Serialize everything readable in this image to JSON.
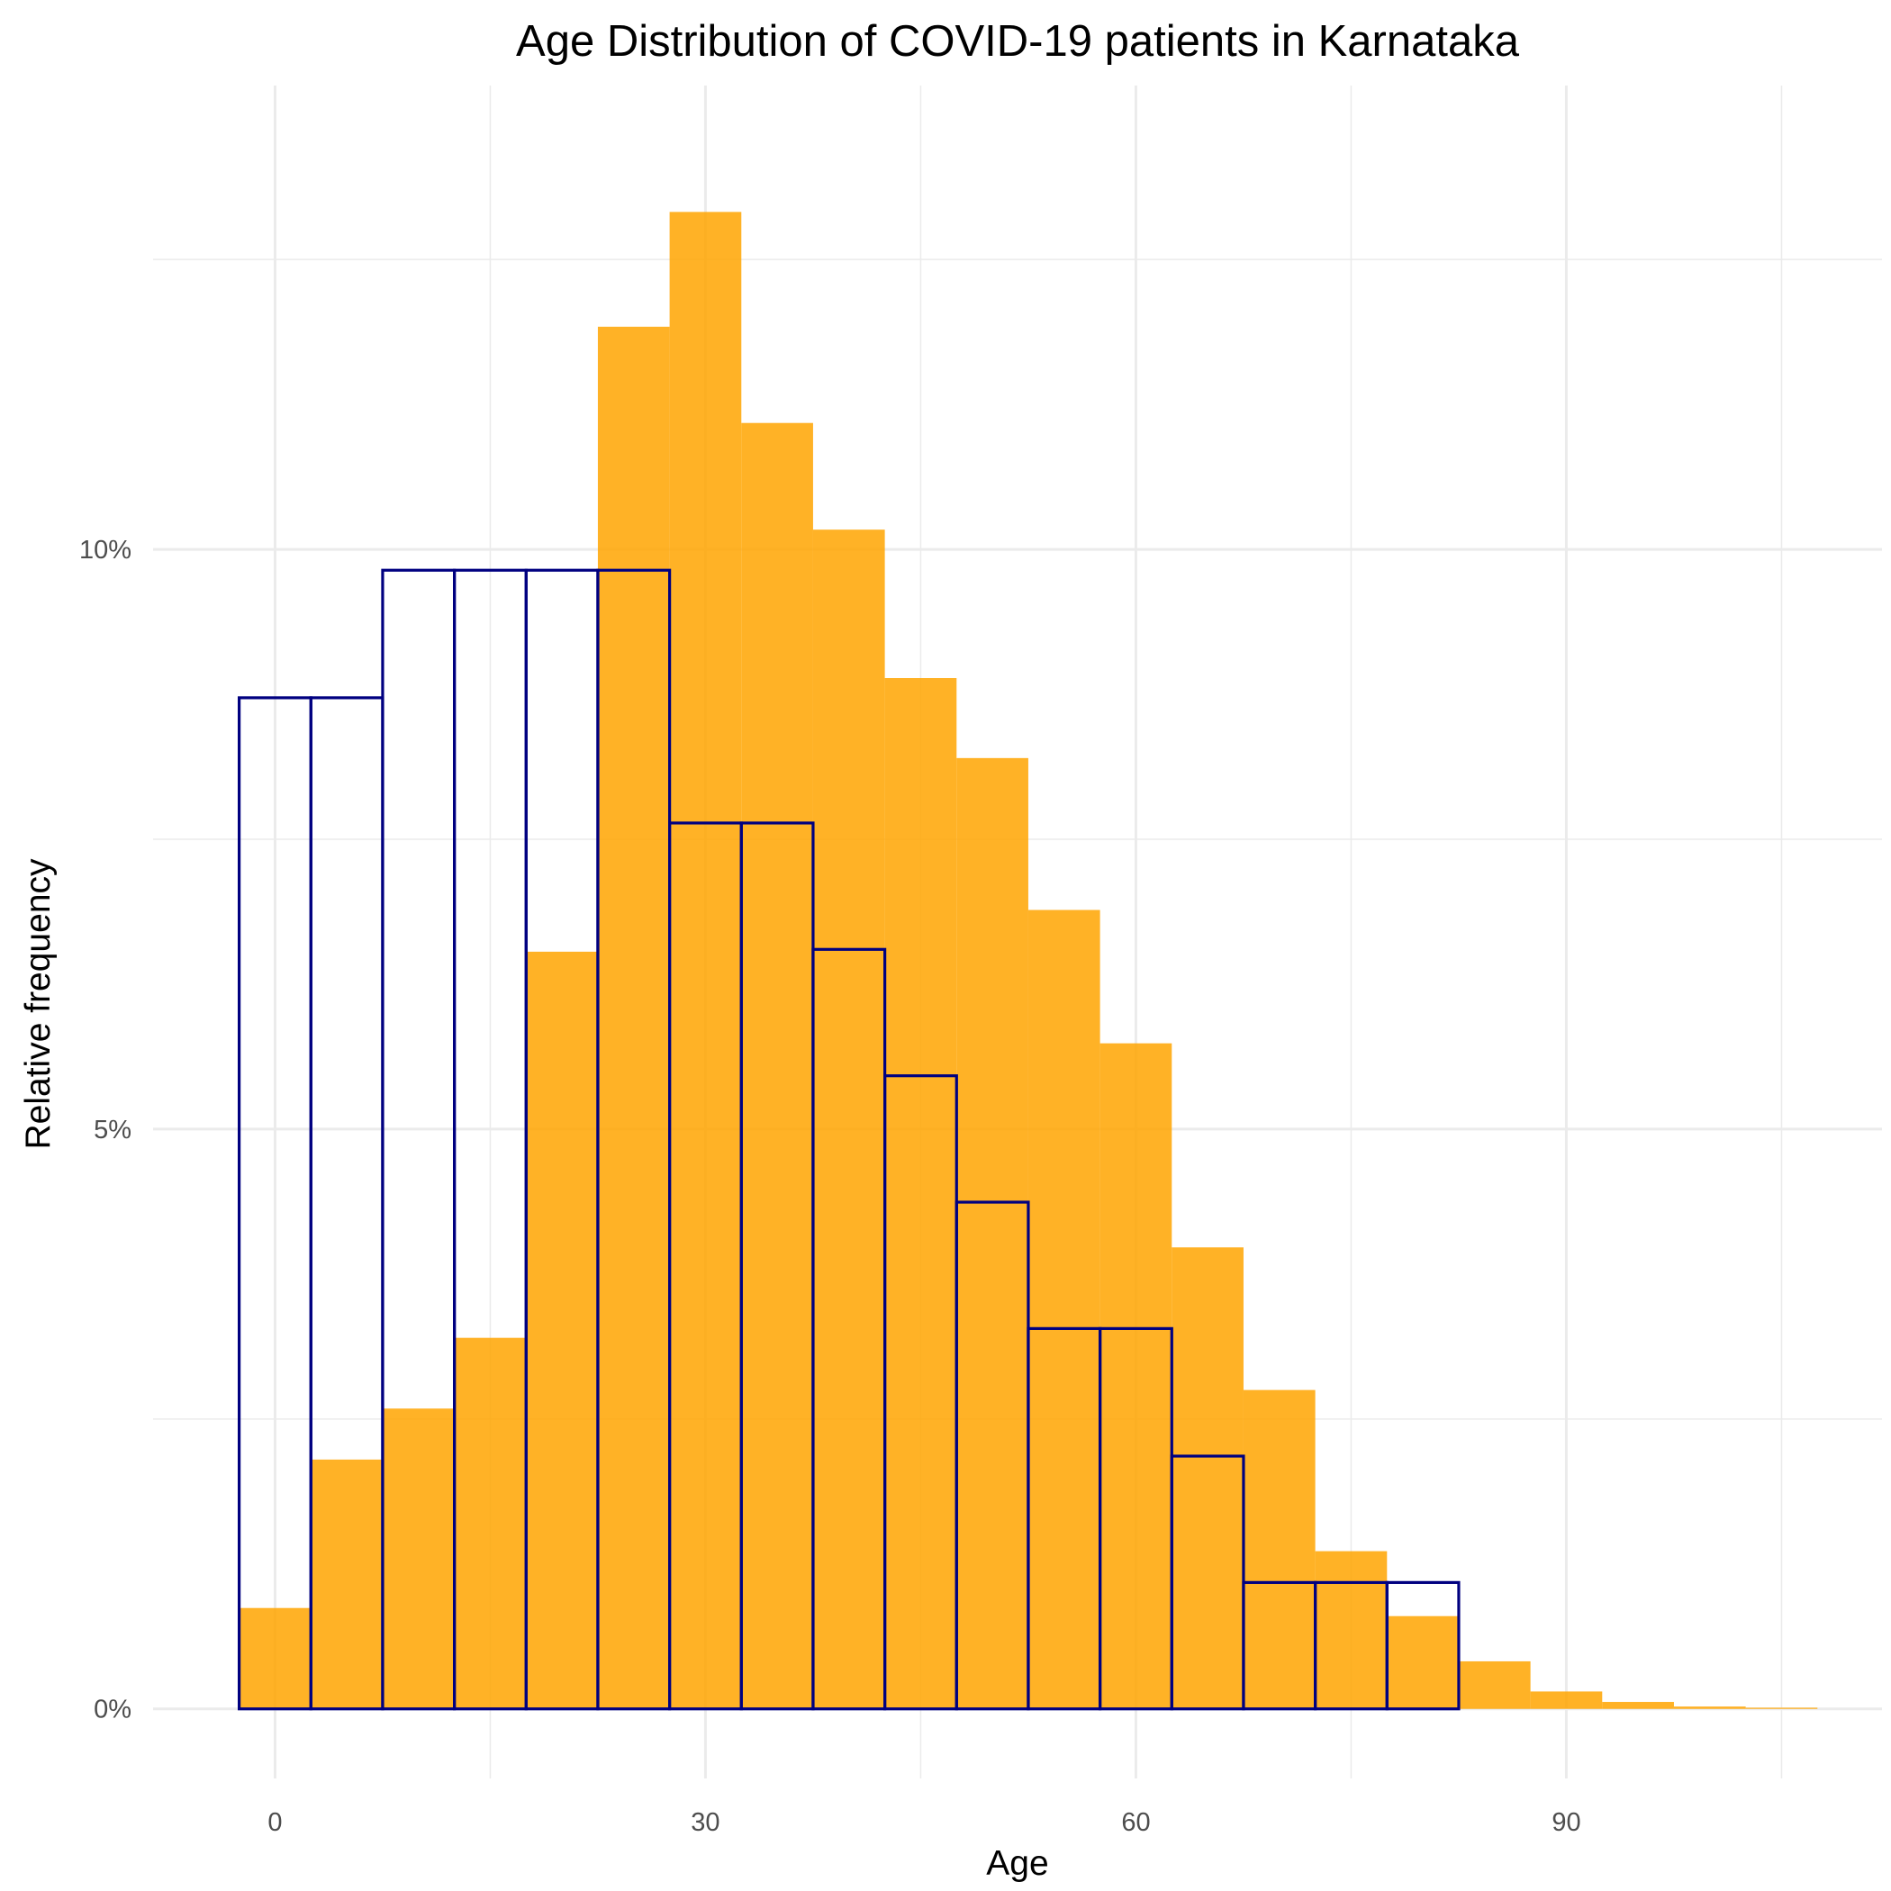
{
  "chart_data": {
    "type": "bar",
    "title": "Age Distribution of COVID-19 patients in Karnataka",
    "xlabel": "Age",
    "ylabel": "Relative frequency",
    "xlim": [
      -8.5,
      112
    ],
    "ylim": [
      -0.6,
      14.0
    ],
    "x_ticks": [
      0,
      30,
      60,
      90
    ],
    "x_tick_labels": [
      "0",
      "30",
      "60",
      "90"
    ],
    "x_minor_ticks": [
      15,
      45,
      75,
      105
    ],
    "y_ticks": [
      0,
      5,
      10
    ],
    "y_tick_labels": [
      "0%",
      "5%",
      "10%"
    ],
    "y_minor_ticks": [
      2.5,
      7.5,
      12.5
    ],
    "bin_width": 5,
    "grid": true,
    "legend": "none",
    "series": [
      {
        "style": "filled",
        "color": "#ffa500",
        "opacity": 0.85,
        "bins": [
          {
            "x": 0,
            "value": 0.87
          },
          {
            "x": 5,
            "value": 2.15
          },
          {
            "x": 10,
            "value": 2.59
          },
          {
            "x": 15,
            "value": 3.2
          },
          {
            "x": 20,
            "value": 6.53
          },
          {
            "x": 25,
            "value": 11.92
          },
          {
            "x": 30,
            "value": 12.91
          },
          {
            "x": 35,
            "value": 11.09
          },
          {
            "x": 40,
            "value": 10.17
          },
          {
            "x": 45,
            "value": 8.89
          },
          {
            "x": 50,
            "value": 8.2
          },
          {
            "x": 55,
            "value": 6.89
          },
          {
            "x": 60,
            "value": 5.74
          },
          {
            "x": 65,
            "value": 3.98
          },
          {
            "x": 70,
            "value": 2.75
          },
          {
            "x": 75,
            "value": 1.36
          },
          {
            "x": 80,
            "value": 0.8
          },
          {
            "x": 85,
            "value": 0.41
          },
          {
            "x": 90,
            "value": 0.15
          },
          {
            "x": 95,
            "value": 0.06
          },
          {
            "x": 100,
            "value": 0.02
          },
          {
            "x": 105,
            "value": 0.01
          }
        ]
      },
      {
        "style": "outline",
        "color": "#000080",
        "bins": [
          {
            "x": 0,
            "value": 8.72
          },
          {
            "x": 5,
            "value": 8.72
          },
          {
            "x": 10,
            "value": 9.82
          },
          {
            "x": 15,
            "value": 9.82
          },
          {
            "x": 20,
            "value": 9.82
          },
          {
            "x": 25,
            "value": 9.82
          },
          {
            "x": 30,
            "value": 7.64
          },
          {
            "x": 35,
            "value": 7.64
          },
          {
            "x": 40,
            "value": 6.55
          },
          {
            "x": 45,
            "value": 5.46
          },
          {
            "x": 50,
            "value": 4.37
          },
          {
            "x": 55,
            "value": 3.28
          },
          {
            "x": 60,
            "value": 3.28
          },
          {
            "x": 65,
            "value": 2.18
          },
          {
            "x": 70,
            "value": 1.09
          },
          {
            "x": 75,
            "value": 1.09
          },
          {
            "x": 80,
            "value": 1.09
          },
          {
            "x": 85,
            "value": 0
          },
          {
            "x": 90,
            "value": 0
          },
          {
            "x": 95,
            "value": 0
          },
          {
            "x": 100,
            "value": 0
          },
          {
            "x": 105,
            "value": 0
          }
        ]
      }
    ]
  }
}
